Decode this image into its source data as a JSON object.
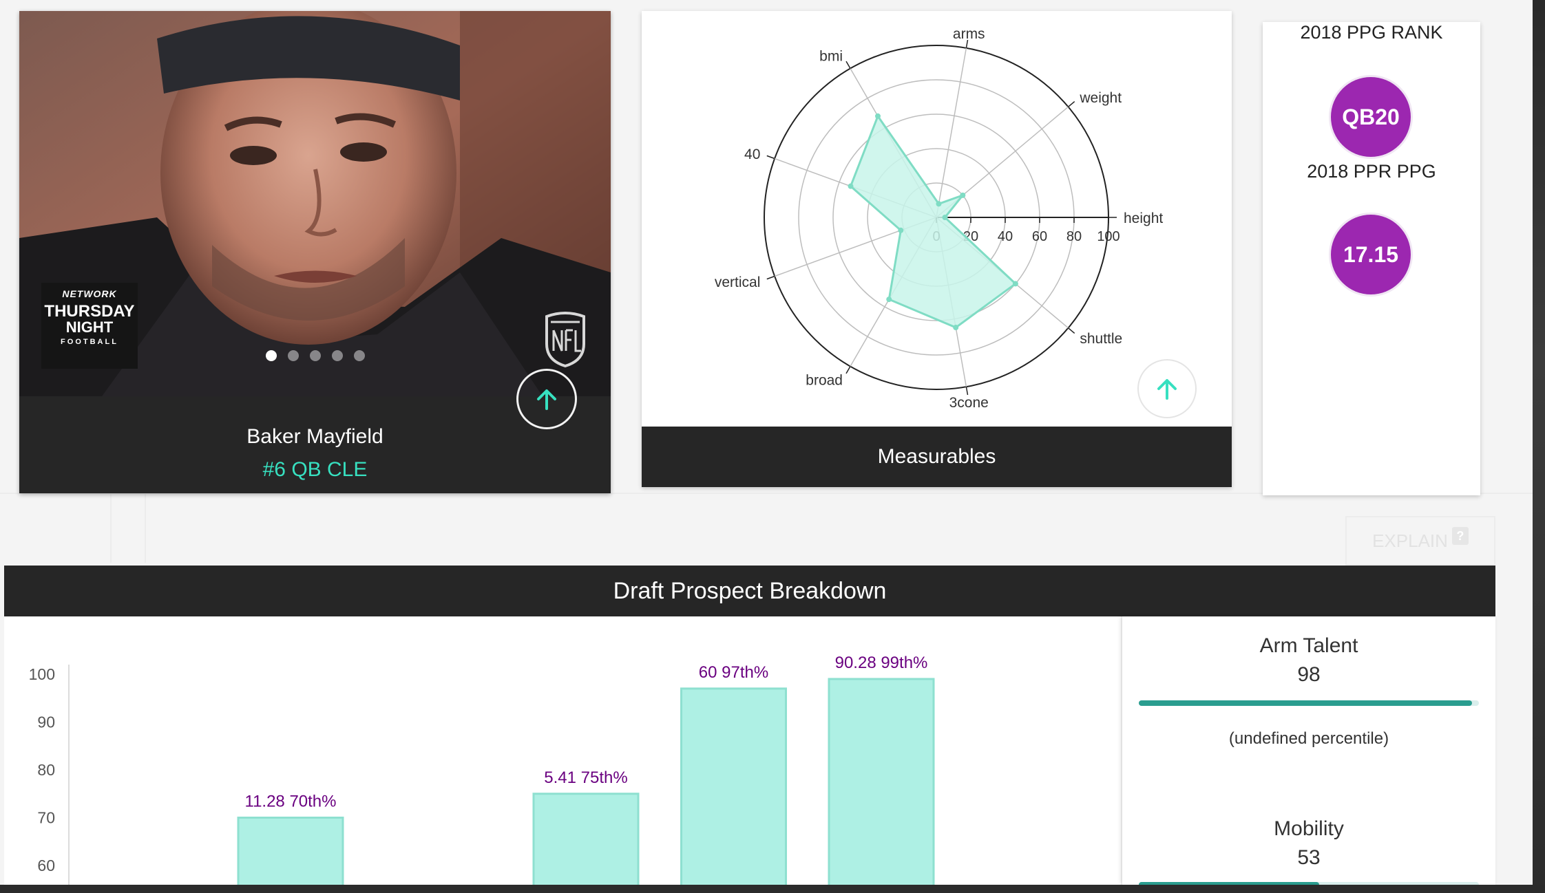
{
  "player": {
    "name": "Baker Mayfield",
    "team_line": "#6 QB CLE",
    "photo_alt": "player-headshot",
    "network_logo": {
      "line1": "NETWORK",
      "line2": "THURSDAY",
      "line3": "NIGHT",
      "line4": "FOOTBALL"
    },
    "carousel": {
      "count": 5,
      "active_index": 0
    }
  },
  "measurables": {
    "title": "Measurables",
    "chart_data": {
      "type": "radar",
      "axes": [
        "height",
        "weight",
        "arms",
        "bmi",
        "40",
        "vertical",
        "broad",
        "3cone",
        "shuttle"
      ],
      "values": [
        5,
        20,
        8,
        68,
        53,
        22,
        55,
        65,
        60
      ],
      "range": [
        0,
        100
      ],
      "radial_ticks": [
        "0",
        "20",
        "40",
        "60",
        "80",
        "100"
      ],
      "fill_color": "#c8f5ea",
      "line_color": "#7fdcc4"
    }
  },
  "rank": {
    "ppg_rank_label": "2018 PPG RANK",
    "ppg_rank_value": "QB20",
    "ppr_ppg_label": "2018 PPR PPG",
    "ppr_ppg_value": "17.15",
    "accent": "#9c27b0"
  },
  "explain": {
    "label": "EXPLAIN",
    "icon": "?"
  },
  "breakdown": {
    "title": "Draft Prospect Breakdown",
    "chart_data": {
      "type": "bar",
      "y_ticks": [
        "100",
        "90",
        "80",
        "70",
        "60"
      ],
      "ylim": [
        60,
        100
      ],
      "bars": [
        {
          "value": 70,
          "label": "11.28 70th%"
        },
        {
          "value": 75,
          "label": "5.41 75th%"
        },
        {
          "value": 97,
          "label": "60 97th%"
        },
        {
          "value": 99,
          "label": "90.28 99th%"
        }
      ],
      "bar_color": "#aef0e4",
      "bar_stroke": "#8ee0d0",
      "label_color": "#6a0080"
    },
    "skills": [
      {
        "name": "Arm Talent",
        "score": "98",
        "level": 0.98,
        "percentile": "(undefined percentile)"
      },
      {
        "name": "Mobility",
        "score": "53",
        "level": 0.53,
        "percentile": ""
      }
    ]
  }
}
